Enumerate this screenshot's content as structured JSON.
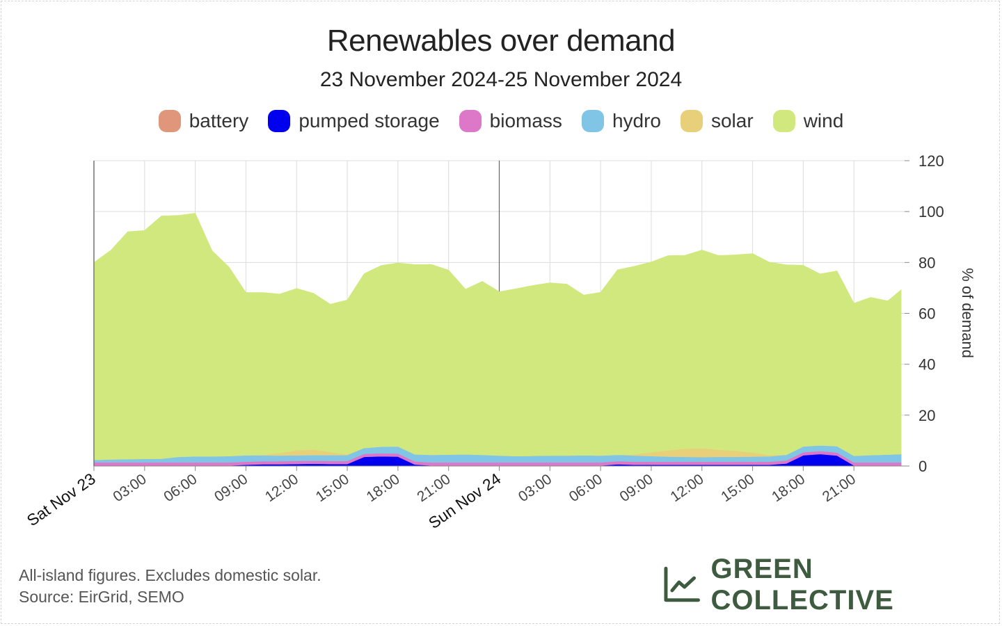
{
  "title": "Renewables over demand",
  "subtitle": "23 November 2024-25 November 2024",
  "legend": [
    {
      "name": "battery",
      "color": "#e0967a"
    },
    {
      "name": "pumped storage",
      "color": "#0000ee"
    },
    {
      "name": "biomass",
      "color": "#dd77c8"
    },
    {
      "name": "hydro",
      "color": "#80c4e6"
    },
    {
      "name": "solar",
      "color": "#e8d07a"
    },
    {
      "name": "wind",
      "color": "#d1e87f"
    }
  ],
  "footnote": {
    "line1": "All-island figures. Excludes domestic solar.",
    "line2": "Source: EirGrid, SEMO"
  },
  "brand": {
    "name": "GREEN COLLECTIVE",
    "color": "#3e5b40"
  },
  "chart_data": {
    "type": "area",
    "stacked": true,
    "ylabel": "% of demand",
    "ylim": [
      0,
      120
    ],
    "yticks": [
      0,
      20,
      40,
      60,
      80,
      100,
      120
    ],
    "xlim": [
      0,
      48
    ],
    "x_unit": "hours since Sat Nov 23 00:00",
    "xticks": [
      {
        "x": 0,
        "label": "Sat Nov 23",
        "day": true
      },
      {
        "x": 3,
        "label": "03:00"
      },
      {
        "x": 6,
        "label": "06:00"
      },
      {
        "x": 9,
        "label": "09:00"
      },
      {
        "x": 12,
        "label": "12:00"
      },
      {
        "x": 15,
        "label": "15:00"
      },
      {
        "x": 18,
        "label": "18:00"
      },
      {
        "x": 21,
        "label": "21:00"
      },
      {
        "x": 24,
        "label": "Sun Nov 24",
        "day": true
      },
      {
        "x": 27,
        "label": "03:00"
      },
      {
        "x": 30,
        "label": "06:00"
      },
      {
        "x": 33,
        "label": "09:00"
      },
      {
        "x": 36,
        "label": "12:00"
      },
      {
        "x": 39,
        "label": "15:00"
      },
      {
        "x": 42,
        "label": "18:00"
      },
      {
        "x": 45,
        "label": "21:00"
      }
    ],
    "grid": true,
    "legend_position": "top-center",
    "x": [
      0,
      1,
      2,
      3,
      4,
      5,
      6,
      7,
      8,
      9,
      10,
      11,
      12,
      13,
      14,
      15,
      16,
      17,
      18,
      19,
      20,
      21,
      22,
      23,
      24,
      25,
      26,
      27,
      28,
      29,
      30,
      31,
      32,
      33,
      34,
      35,
      36,
      37,
      38,
      39,
      40,
      41,
      42,
      43,
      44,
      45,
      46,
      47,
      47.8
    ],
    "series": [
      {
        "name": "battery",
        "color": "#e0967a",
        "values": [
          0.2,
          0.2,
          0.2,
          0.2,
          0.2,
          0.2,
          0.2,
          0.2,
          0.2,
          0.2,
          0.2,
          0.2,
          0.2,
          0.2,
          0.2,
          0.2,
          0.2,
          0.2,
          0.2,
          0.2,
          0.2,
          0.2,
          0.2,
          0.2,
          0.2,
          0.2,
          0.2,
          0.2,
          0.2,
          0.2,
          0.2,
          0.2,
          0.2,
          0.2,
          0.2,
          0.2,
          0.2,
          0.2,
          0.2,
          0.2,
          0.2,
          0.2,
          0.2,
          0.2,
          0.2,
          0.2,
          0.2,
          0.2,
          0.2
        ]
      },
      {
        "name": "pumped storage",
        "color": "#0000ee",
        "values": [
          0,
          0,
          0,
          0,
          0,
          0,
          0,
          0,
          0,
          0.3,
          0.5,
          0.5,
          0.6,
          0.7,
          0.6,
          0.6,
          3.4,
          3.6,
          3.5,
          0.4,
          0,
          0,
          0,
          0,
          0,
          0,
          0,
          0,
          0,
          0,
          0,
          0.5,
          0.3,
          0.3,
          0.3,
          0.3,
          0.3,
          0.3,
          0.3,
          0.3,
          0.3,
          0.8,
          4.0,
          4.5,
          3.9,
          0,
          0,
          0,
          0
        ]
      },
      {
        "name": "biomass",
        "color": "#dd77c8",
        "values": [
          1.2,
          1.2,
          1.2,
          1.2,
          1.2,
          1.2,
          1.2,
          1.2,
          1.2,
          1.2,
          1.2,
          1.2,
          1.2,
          1.2,
          1.2,
          1.2,
          1.2,
          1.2,
          1.2,
          1.2,
          1.2,
          1.2,
          1.2,
          1.2,
          1.2,
          1.2,
          1.2,
          1.2,
          1.2,
          1.2,
          1.2,
          1.2,
          1.2,
          1.2,
          1.2,
          1.2,
          1.2,
          1.2,
          1.2,
          1.2,
          1.2,
          1.2,
          1.2,
          1.2,
          1.2,
          1.2,
          1.2,
          1.2,
          1.2
        ]
      },
      {
        "name": "hydro",
        "color": "#80c4e6",
        "values": [
          1.0,
          1.2,
          1.3,
          1.4,
          1.5,
          2.2,
          2.4,
          2.4,
          2.5,
          2.5,
          2.3,
          2.2,
          2.2,
          2.2,
          2.3,
          2.3,
          2.3,
          2.6,
          2.8,
          2.8,
          3.0,
          3.1,
          3.2,
          3.0,
          2.7,
          2.5,
          2.6,
          2.7,
          2.7,
          2.8,
          2.7,
          2.5,
          2.4,
          2.2,
          2.0,
          1.9,
          1.8,
          1.9,
          1.9,
          2.0,
          2.1,
          2.2,
          2.3,
          2.2,
          2.5,
          2.6,
          2.9,
          3.1,
          3.3
        ]
      },
      {
        "name": "solar",
        "color": "#e8d07a",
        "values": [
          0,
          0,
          0,
          0,
          0,
          0,
          0,
          0,
          0,
          0,
          0.2,
          1.0,
          2.0,
          2.2,
          1.2,
          0.3,
          0,
          0,
          0,
          0,
          0,
          0,
          0,
          0,
          0,
          0,
          0,
          0,
          0,
          0,
          0,
          0,
          0.5,
          1.5,
          2.5,
          3.2,
          3.5,
          2.8,
          2.4,
          1.6,
          0.5,
          0,
          0,
          0,
          0,
          0,
          0,
          0,
          0
        ]
      },
      {
        "name": "wind",
        "color": "#d1e87f",
        "values": [
          77.6,
          82.2,
          89.4,
          89.8,
          95.4,
          94.9,
          95.6,
          80.8,
          74.3,
          64.0,
          63.8,
          62.5,
          63.6,
          61.4,
          58.1,
          60.7,
          68.5,
          71.2,
          72.1,
          74.6,
          74.8,
          72.5,
          64.9,
          68.2,
          64.4,
          65.8,
          67.0,
          67.9,
          67.4,
          63.0,
          64.2,
          72.7,
          73.9,
          74.8,
          76.5,
          76.0,
          77.9,
          76.3,
          77.0,
          78.2,
          75.8,
          74.7,
          71.2,
          67.4,
          68.9,
          60.0,
          62.0,
          60.4,
          64.6
        ]
      }
    ]
  }
}
